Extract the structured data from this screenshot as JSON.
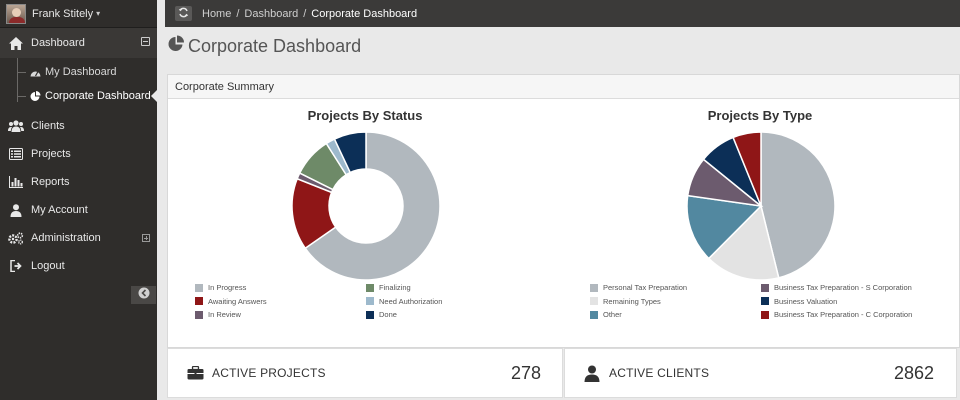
{
  "user": {
    "name": "Frank Stitely"
  },
  "sidebar": {
    "dashboard_label": "Dashboard",
    "sub_items": [
      {
        "label": "My Dashboard",
        "icon": "gauge-icon"
      },
      {
        "label": "Corporate Dashboard",
        "icon": "pie-chart-icon"
      }
    ],
    "items": [
      {
        "label": "Clients",
        "icon": "users-icon"
      },
      {
        "label": "Projects",
        "icon": "list-icon"
      },
      {
        "label": "Reports",
        "icon": "bar-chart-icon"
      },
      {
        "label": "My Account",
        "icon": "user-icon"
      },
      {
        "label": "Administration",
        "icon": "gears-icon"
      },
      {
        "label": "Logout",
        "icon": "sign-out-icon"
      }
    ]
  },
  "breadcrumb": [
    {
      "label": "Home"
    },
    {
      "label": "Dashboard"
    },
    {
      "label": "Corporate Dashboard"
    }
  ],
  "page": {
    "title": "Corporate Dashboard"
  },
  "panel": {
    "title": "Corporate Summary"
  },
  "chart_data": [
    {
      "type": "pie",
      "variant": "donut",
      "title": "Projects By Status",
      "legend_position": "bottom",
      "series": [
        {
          "name": "In Progress",
          "value": 196,
          "color": "#b1b8be"
        },
        {
          "name": "Awaiting Answers",
          "value": 47,
          "color": "#8f1617"
        },
        {
          "name": "In Review",
          "value": 4,
          "color": "#6c5b6e"
        },
        {
          "name": "Finalizing",
          "value": 26,
          "color": "#6e8a68"
        },
        {
          "name": "Need Authorization",
          "value": 6,
          "color": "#9db9cc"
        },
        {
          "name": "Done",
          "value": 21,
          "color": "#0c2f57"
        }
      ]
    },
    {
      "type": "pie",
      "title": "Projects By Type",
      "legend_position": "bottom",
      "series": [
        {
          "name": "Personal Tax Preparation",
          "value": 150,
          "color": "#b1b8be"
        },
        {
          "name": "Remaining Types",
          "value": 53,
          "color": "#e3e3e3"
        },
        {
          "name": "Other",
          "value": 48,
          "color": "#5288a0"
        },
        {
          "name": "Business Tax Preparation - S Corporation",
          "value": 28,
          "color": "#6c5b6e"
        },
        {
          "name": "Business Valuation",
          "value": 26,
          "color": "#0c2f57"
        },
        {
          "name": "Business Tax Preparation - C Corporation",
          "value": 20,
          "color": "#8f1617"
        }
      ]
    }
  ],
  "stats": [
    {
      "label": "ACTIVE PROJECTS",
      "value": "278",
      "icon": "briefcase-icon"
    },
    {
      "label": "ACTIVE CLIENTS",
      "value": "2862",
      "icon": "user-icon"
    }
  ]
}
